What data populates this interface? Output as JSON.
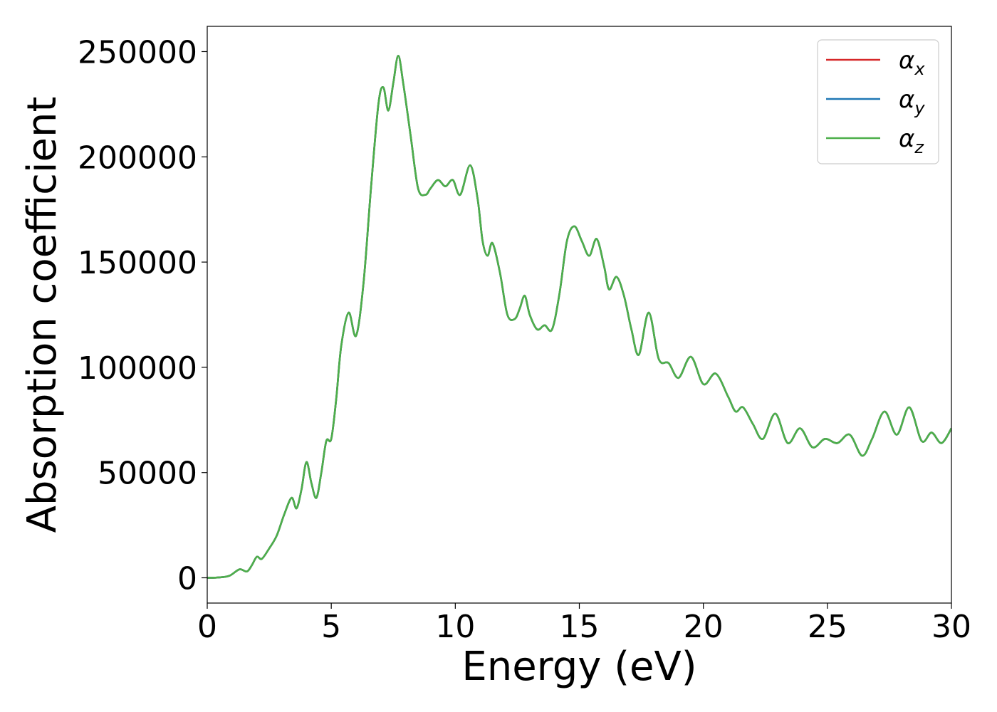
{
  "chart_data": {
    "type": "line",
    "title": "",
    "xlabel": "Energy (eV)",
    "ylabel": "Absorption coefficient",
    "xlim": [
      0,
      30
    ],
    "ylim": [
      -12000,
      262000
    ],
    "xticks": [
      0,
      5,
      10,
      15,
      20,
      25,
      30
    ],
    "yticks": [
      0,
      50000,
      100000,
      150000,
      200000,
      250000
    ],
    "xtick_labels": [
      "0",
      "5",
      "10",
      "15",
      "20",
      "25",
      "30"
    ],
    "ytick_labels": [
      "0",
      "50000",
      "100000",
      "150000",
      "200000",
      "250000"
    ],
    "grid": false,
    "legend_position": "top-right",
    "x": [
      0,
      0.5,
      0.9,
      1.3,
      1.6,
      1.8,
      2.0,
      2.2,
      2.5,
      2.8,
      3.1,
      3.4,
      3.6,
      3.8,
      4.0,
      4.2,
      4.4,
      4.6,
      4.8,
      5.0,
      5.2,
      5.4,
      5.7,
      6.0,
      6.3,
      6.6,
      6.9,
      7.1,
      7.3,
      7.5,
      7.7,
      7.9,
      8.2,
      8.5,
      8.8,
      9.0,
      9.3,
      9.6,
      9.9,
      10.2,
      10.6,
      10.9,
      11.1,
      11.3,
      11.5,
      11.8,
      12.1,
      12.4,
      12.6,
      12.8,
      13.0,
      13.3,
      13.6,
      13.9,
      14.2,
      14.5,
      14.8,
      15.1,
      15.4,
      15.7,
      16.0,
      16.2,
      16.5,
      16.8,
      17.1,
      17.4,
      17.8,
      18.2,
      18.6,
      19.0,
      19.5,
      20.0,
      20.5,
      21.0,
      21.3,
      21.6,
      22.0,
      22.4,
      22.9,
      23.4,
      23.9,
      24.4,
      24.9,
      25.4,
      25.9,
      26.4,
      26.8,
      27.3,
      27.8,
      28.3,
      28.8,
      29.2,
      29.6,
      30.0
    ],
    "series": [
      {
        "name": "αx",
        "label_base": "α",
        "label_sub": "x",
        "color": "#d62728",
        "y": [
          0,
          200,
          1000,
          4000,
          3000,
          6000,
          10000,
          9000,
          14000,
          20000,
          30000,
          38000,
          33000,
          42000,
          55000,
          45000,
          38000,
          50000,
          65000,
          66000,
          85000,
          110000,
          126000,
          115000,
          140000,
          185000,
          225000,
          233000,
          222000,
          235000,
          248000,
          235000,
          210000,
          185000,
          182000,
          185000,
          189000,
          186000,
          189000,
          182000,
          196000,
          180000,
          160000,
          153000,
          159000,
          145000,
          125000,
          123000,
          128000,
          134000,
          125000,
          118000,
          120000,
          118000,
          135000,
          160000,
          167000,
          160000,
          153000,
          161000,
          148000,
          137000,
          143000,
          134000,
          118000,
          106000,
          126000,
          104000,
          102000,
          95000,
          105000,
          92000,
          97000,
          86000,
          79000,
          81000,
          73000,
          66000,
          78000,
          64000,
          71000,
          62000,
          66000,
          64000,
          68000,
          58000,
          66000,
          79000,
          68000,
          81000,
          65000,
          69000,
          64000,
          71000
        ]
      },
      {
        "name": "αy",
        "label_base": "α",
        "label_sub": "y",
        "color": "#1f77b4",
        "y": [
          0,
          200,
          1000,
          4000,
          3000,
          6000,
          10000,
          9000,
          14000,
          20000,
          30000,
          38000,
          33000,
          42000,
          55000,
          45000,
          38000,
          50000,
          65000,
          66000,
          85000,
          110000,
          126000,
          115000,
          140000,
          185000,
          225000,
          233000,
          222000,
          235000,
          248000,
          235000,
          210000,
          185000,
          182000,
          185000,
          189000,
          186000,
          189000,
          182000,
          196000,
          180000,
          160000,
          153000,
          159000,
          145000,
          125000,
          123000,
          128000,
          134000,
          125000,
          118000,
          120000,
          118000,
          135000,
          160000,
          167000,
          160000,
          153000,
          161000,
          148000,
          137000,
          143000,
          134000,
          118000,
          106000,
          126000,
          104000,
          102000,
          95000,
          105000,
          92000,
          97000,
          86000,
          79000,
          81000,
          73000,
          66000,
          78000,
          64000,
          71000,
          62000,
          66000,
          64000,
          68000,
          58000,
          66000,
          79000,
          68000,
          81000,
          65000,
          69000,
          64000,
          71000
        ]
      },
      {
        "name": "αz",
        "label_base": "α",
        "label_sub": "z",
        "color": "#4daf4a",
        "y": [
          0,
          200,
          1000,
          4000,
          3000,
          6000,
          10000,
          9000,
          14000,
          20000,
          30000,
          38000,
          33000,
          42000,
          55000,
          45000,
          38000,
          50000,
          65000,
          66000,
          85000,
          110000,
          126000,
          115000,
          140000,
          185000,
          225000,
          233000,
          222000,
          235000,
          248000,
          235000,
          210000,
          185000,
          182000,
          185000,
          189000,
          186000,
          189000,
          182000,
          196000,
          180000,
          160000,
          153000,
          159000,
          145000,
          125000,
          123000,
          128000,
          134000,
          125000,
          118000,
          120000,
          118000,
          135000,
          160000,
          167000,
          160000,
          153000,
          161000,
          148000,
          137000,
          143000,
          134000,
          118000,
          106000,
          126000,
          104000,
          102000,
          95000,
          105000,
          92000,
          97000,
          86000,
          79000,
          81000,
          73000,
          66000,
          78000,
          64000,
          71000,
          62000,
          66000,
          64000,
          68000,
          58000,
          66000,
          79000,
          68000,
          81000,
          65000,
          69000,
          64000,
          71000
        ]
      }
    ]
  }
}
